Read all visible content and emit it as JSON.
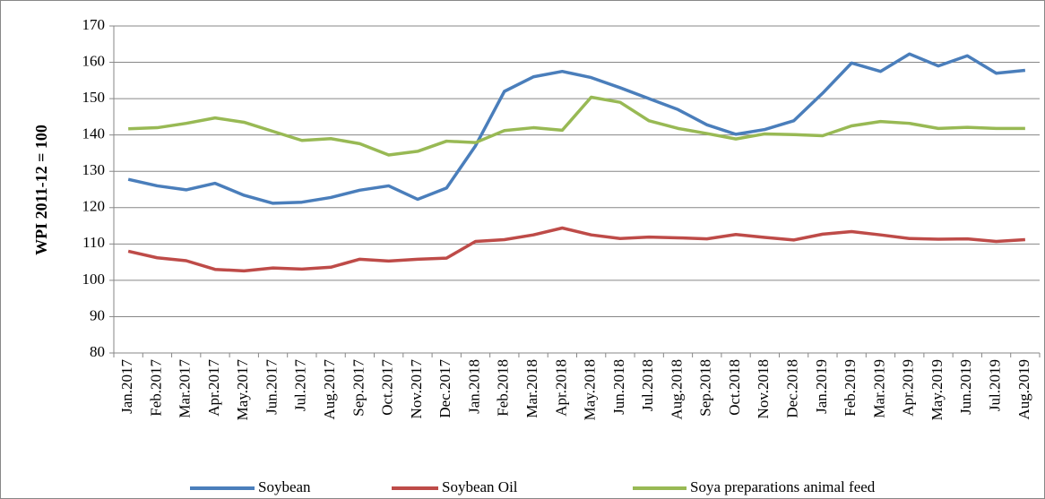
{
  "chart_data": {
    "type": "line",
    "y_label": "WPI 2011-12 = 100",
    "categories": [
      "Jan.2017",
      "Feb.2017",
      "Mar.2017",
      "Apr.2017",
      "May.2017",
      "Jun.2017",
      "Jul.2017",
      "Aug.2017",
      "Sep.2017",
      "Oct.2017",
      "Nov.2017",
      "Dec.2017",
      "Jan.2018",
      "Feb.2018",
      "Mar.2018",
      "Apr.2018",
      "May.2018",
      "Jun.2018",
      "Jul.2018",
      "Aug.2018",
      "Sep.2018",
      "Oct.2018",
      "Nov.2018",
      "Dec.2018",
      "Jan.2019",
      "Feb.2019",
      "Mar.2019",
      "Apr.2019",
      "May.2019",
      "Jun.2019",
      "Jul.2019",
      "Aug.2019"
    ],
    "series": [
      {
        "name": "Soybean",
        "color": "#4a7ebb",
        "values": [
          127.8,
          126,
          124.9,
          126.7,
          123.4,
          121.2,
          121.5,
          122.8,
          124.8,
          126,
          122.3,
          125.4,
          137,
          152,
          156,
          157.5,
          155.8,
          153,
          150,
          147,
          142.8,
          140.2,
          141.5,
          143.9,
          151.5,
          159.8,
          157.5,
          162.3,
          159,
          161.8,
          157,
          157.8
        ]
      },
      {
        "name": "Soybean Oil",
        "color": "#be4b48",
        "values": [
          108,
          106.2,
          105.4,
          103,
          102.6,
          103.4,
          103.1,
          103.6,
          105.8,
          105.3,
          105.8,
          106.1,
          110.7,
          111.2,
          112.5,
          114.4,
          112.5,
          111.5,
          111.9,
          111.7,
          111.4,
          112.6,
          111.8,
          111.1,
          112.7,
          113.4,
          112.5,
          111.5,
          111.3,
          111.4,
          110.7,
          111.2
        ]
      },
      {
        "name": "Soya preparations animal feed",
        "color": "#98b954",
        "values": [
          141.7,
          142,
          143.2,
          144.7,
          143.5,
          141,
          138.5,
          139,
          137.6,
          134.5,
          135.5,
          138.3,
          137.9,
          141.2,
          142,
          141.3,
          150.4,
          149,
          143.9,
          141.8,
          140.4,
          138.9,
          140.3,
          140.1,
          139.8,
          142.5,
          143.7,
          143.2,
          141.8,
          142.1,
          141.8,
          141.8
        ]
      }
    ],
    "ylim": [
      80,
      170
    ],
    "yticks": [
      80,
      90,
      100,
      110,
      120,
      130,
      140,
      150,
      160,
      170
    ],
    "grid": true,
    "legend": "bottom"
  }
}
